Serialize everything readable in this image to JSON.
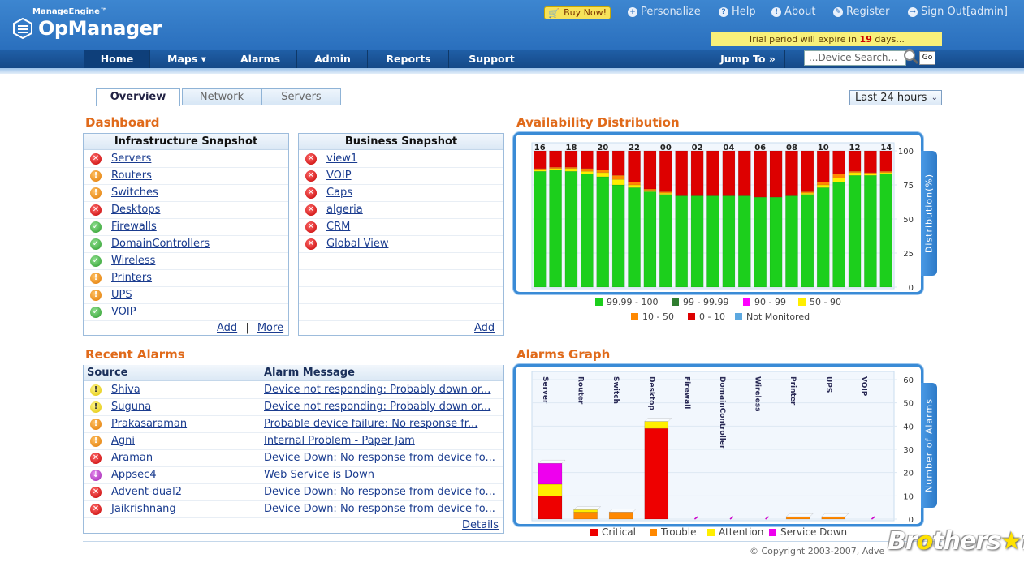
{
  "header": {
    "brand_small": "ManageEngine™",
    "brand": "OpManager",
    "buy_now": "Buy Now!",
    "links": [
      "Personalize",
      "Help",
      "About",
      "Register",
      "Sign Out[admin]"
    ],
    "trial_prefix": "Trial period will expire in",
    "trial_days": "19",
    "trial_suffix": "days..."
  },
  "nav": {
    "items": [
      "Home",
      "Maps ▾",
      "Alarms",
      "Admin",
      "Reports",
      "Support"
    ],
    "jump_to": "Jump To »",
    "search_placeholder": "...Device Search...",
    "go": "Go"
  },
  "tabs": [
    "Overview",
    "Network",
    "Servers"
  ],
  "time_range": "Last 24 hours",
  "dashboard": {
    "title": "Dashboard",
    "infra": {
      "title": "Infrastructure Snapshot",
      "items": [
        {
          "label": "Servers",
          "status": "red"
        },
        {
          "label": "Routers",
          "status": "orange"
        },
        {
          "label": "Switches",
          "status": "orange"
        },
        {
          "label": "Desktops",
          "status": "red"
        },
        {
          "label": "Firewalls",
          "status": "green"
        },
        {
          "label": "DomainControllers",
          "status": "green"
        },
        {
          "label": "Wireless",
          "status": "green"
        },
        {
          "label": "Printers",
          "status": "orange"
        },
        {
          "label": "UPS",
          "status": "orange"
        },
        {
          "label": "VOIP",
          "status": "green"
        }
      ],
      "add": "Add",
      "sep": "|",
      "more": "More"
    },
    "business": {
      "title": "Business Snapshot",
      "items": [
        {
          "label": "view1",
          "status": "red"
        },
        {
          "label": "VOIP",
          "status": "red"
        },
        {
          "label": "Caps",
          "status": "red"
        },
        {
          "label": "algeria",
          "status": "red"
        },
        {
          "label": "CRM",
          "status": "red"
        },
        {
          "label": "Global View",
          "status": "red"
        }
      ],
      "add": "Add"
    }
  },
  "recent_alarms": {
    "title": "Recent Alarms",
    "col_source": "Source",
    "col_message": "Alarm Message",
    "rows": [
      {
        "source": "Shiva",
        "message": "Device not responding: Probably down or...",
        "status": "yellow"
      },
      {
        "source": "Suguna",
        "message": "Device not responding: Probably down or...",
        "status": "yellow"
      },
      {
        "source": "Prakasaraman",
        "message": "Probable device failure: No response fr...",
        "status": "orange"
      },
      {
        "source": "Agni",
        "message": "Internal Problem - Paper Jam",
        "status": "orange"
      },
      {
        "source": "Araman",
        "message": "Device Down: No response from device fo...",
        "status": "red"
      },
      {
        "source": "Appsec4",
        "message": "Web Service is Down",
        "status": "purple"
      },
      {
        "source": "Advent-dual2",
        "message": "Device Down: No response from device fo...",
        "status": "red"
      },
      {
        "source": "Jaikrishnang",
        "message": "Device Down: No response from device fo...",
        "status": "red"
      }
    ],
    "details": "Details"
  },
  "chart_data": [
    {
      "type": "bar",
      "title": "Availability Distribution",
      "ylabel": "Distribution(%)",
      "ylim": [
        0,
        100
      ],
      "yticks": [
        0,
        25,
        50,
        75,
        100
      ],
      "top_labels": [
        "16",
        "18",
        "20",
        "22",
        "00",
        "02",
        "04",
        "06",
        "08",
        "10",
        "12",
        "14"
      ],
      "stacked": true,
      "series": [
        {
          "name": "99.99 - 100",
          "color": "#1ccf1c",
          "values": [
            85,
            86,
            85,
            83,
            81,
            75,
            73,
            70,
            68,
            67,
            67,
            67,
            67,
            67,
            66,
            66,
            67,
            68,
            73,
            77,
            82,
            82,
            83
          ]
        },
        {
          "name": "99 - 99.99",
          "color": "#2f7d2f",
          "values": [
            0,
            0,
            0,
            0,
            0,
            0,
            0,
            0,
            0,
            0,
            0,
            0,
            0,
            0,
            0,
            0,
            0,
            0,
            0,
            0,
            0,
            0,
            0
          ]
        },
        {
          "name": "90 - 99",
          "color": "#ff00ff",
          "values": [
            0,
            0,
            0,
            0,
            0,
            0,
            0,
            0,
            0,
            0,
            0,
            0,
            0,
            0,
            0,
            0,
            0,
            0,
            0,
            0,
            0,
            0,
            0
          ]
        },
        {
          "name": "50 - 90",
          "color": "#ffee00",
          "values": [
            1,
            1,
            2,
            2,
            3,
            4,
            2,
            1,
            1,
            0,
            0,
            0,
            0,
            0,
            0,
            0,
            0,
            1,
            2,
            3,
            2,
            1,
            1
          ]
        },
        {
          "name": "10 - 50",
          "color": "#ff8800",
          "values": [
            1,
            1,
            1,
            2,
            2,
            3,
            2,
            1,
            1,
            0,
            0,
            0,
            0,
            0,
            0,
            0,
            0,
            1,
            2,
            3,
            1,
            1,
            1
          ]
        },
        {
          "name": "0 - 10",
          "color": "#dd0000",
          "values": [
            13,
            12,
            12,
            13,
            14,
            18,
            23,
            28,
            30,
            33,
            33,
            33,
            33,
            33,
            34,
            34,
            33,
            30,
            23,
            17,
            15,
            16,
            15
          ]
        },
        {
          "name": "Not Monitored",
          "color": "#5ca8e0",
          "values": [
            0,
            0,
            0,
            0,
            0,
            0,
            0,
            0,
            0,
            0,
            0,
            0,
            0,
            0,
            0,
            0,
            0,
            0,
            0,
            0,
            0,
            0,
            0
          ]
        }
      ]
    },
    {
      "type": "bar",
      "title": "Alarms Graph",
      "ylabel": "Number of Alarms",
      "ylim": [
        0,
        60
      ],
      "yticks": [
        0,
        10,
        20,
        30,
        40,
        50,
        60
      ],
      "stacked": true,
      "categories": [
        "Server",
        "Router",
        "Switch",
        "Desktop",
        "Firewall",
        "DomainController",
        "Wireless",
        "Printer",
        "UPS",
        "VOIP"
      ],
      "series": [
        {
          "name": "Critical",
          "color": "#ee0000",
          "values": [
            10,
            0,
            0,
            39,
            0,
            0,
            0,
            0,
            0,
            0
          ]
        },
        {
          "name": "Trouble",
          "color": "#ff8800",
          "values": [
            0,
            3,
            3,
            0,
            0,
            0,
            0,
            1,
            1,
            0
          ]
        },
        {
          "name": "Attention",
          "color": "#ffee00",
          "values": [
            5,
            1,
            0,
            3,
            0,
            0,
            0,
            0,
            0,
            0
          ]
        },
        {
          "name": "Service Down",
          "color": "#ee00ee",
          "values": [
            9,
            0,
            0,
            0,
            0,
            0,
            0,
            0,
            0,
            0
          ]
        }
      ]
    }
  ],
  "footer": {
    "copyright": "© Copyright 2003-2007, Adve",
    "watermark": "Brothersoft"
  }
}
